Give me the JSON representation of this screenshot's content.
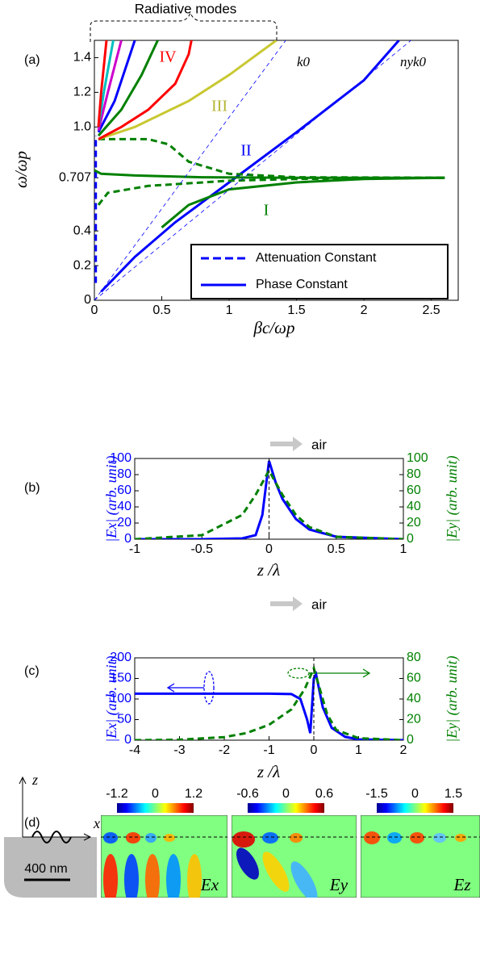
{
  "chart_data": [
    {
      "type": "line",
      "label": "(a)",
      "xlabel": "βc/ωp",
      "ylabel": "ω/ωp",
      "xlim": [
        0,
        2.7
      ],
      "ylim": [
        0,
        1.5
      ],
      "xticks": [
        0,
        0.5,
        1,
        1.5,
        2,
        2.5
      ],
      "yticks": [
        0,
        0.2,
        0.4,
        0.707,
        {
          "value": 1.0,
          "label": "1.0"
        },
        {
          "value": 1.2,
          "label": "1.2"
        },
        {
          "value": 1.4,
          "label": "1.4"
        }
      ],
      "legend_position": "lower right",
      "legend": [
        {
          "label": "Attenuation Constant",
          "color": "#0000ff",
          "dashed": true
        },
        {
          "label": "Phase Constant",
          "color": "#0000ff",
          "dashed": false
        }
      ],
      "annotations": [
        "Radiative modes",
        "IV",
        "III",
        "II",
        "I",
        "k0",
        "nyk0"
      ],
      "series": [
        {
          "color": "#0000ff",
          "dashed": true,
          "x": [
            0.01,
            0.01
          ],
          "values": [
            0.1,
            0.95
          ]
        },
        {
          "color": "#0000ff",
          "dashed": false,
          "x": [
            0.05,
            0.3,
            0.6,
            1.0,
            1.5,
            2.0,
            2.26
          ],
          "values": [
            0.05,
            0.25,
            0.45,
            0.68,
            0.97,
            1.27,
            1.5
          ]
        },
        {
          "color": "#008000",
          "dashed": false,
          "x": [
            0,
            0.05,
            0.3,
            0.8,
            1.5,
            2.6
          ],
          "values": [
            0.75,
            0.73,
            0.72,
            0.71,
            0.707,
            0.707
          ]
        },
        {
          "color": "#008000",
          "dashed": false,
          "x": [
            0.5,
            0.7,
            1.0,
            1.5,
            2.0,
            2.6
          ],
          "values": [
            0.42,
            0.55,
            0.64,
            0.68,
            0.7,
            0.707
          ]
        },
        {
          "color": "#008000",
          "dashed": true,
          "x": [
            0.03,
            0.4,
            0.55,
            0.7,
            1.0,
            1.5,
            2.6
          ],
          "values": [
            0.93,
            0.93,
            0.9,
            0.8,
            0.73,
            0.71,
            0.707
          ]
        },
        {
          "color": "#008000",
          "dashed": true,
          "x": [
            0.03,
            0.1,
            0.4,
            1.0,
            1.5,
            2.6
          ],
          "values": [
            0.55,
            0.62,
            0.66,
            0.69,
            0.7,
            0.707
          ]
        },
        {
          "color": "#c8c832",
          "dashed": false,
          "x": [
            0.03,
            0.3,
            0.7,
            1.0,
            1.35
          ],
          "values": [
            0.93,
            1.0,
            1.15,
            1.3,
            1.5
          ]
        },
        {
          "color": "#ff0000",
          "dashed": false,
          "x": [
            0.03,
            0.2,
            0.4,
            0.6,
            0.7,
            0.72
          ],
          "values": [
            0.93,
            1.0,
            1.1,
            1.25,
            1.42,
            1.5
          ]
        },
        {
          "color": "#008000",
          "dashed": false,
          "x": [
            0.03,
            0.2,
            0.35,
            0.47
          ],
          "values": [
            0.95,
            1.1,
            1.3,
            1.5
          ]
        },
        {
          "color": "#0000ff",
          "dashed": false,
          "x": [
            0.03,
            0.15,
            0.3
          ],
          "values": [
            0.97,
            1.15,
            1.5
          ]
        },
        {
          "color": "#cc00cc",
          "dashed": false,
          "x": [
            0.03,
            0.1,
            0.2
          ],
          "values": [
            0.98,
            1.2,
            1.5
          ]
        },
        {
          "color": "#00bfbf",
          "dashed": false,
          "x": [
            0.03,
            0.07,
            0.14
          ],
          "values": [
            1.0,
            1.2,
            1.5
          ]
        },
        {
          "color": "#ff0000",
          "dashed": false,
          "x": [
            0.03,
            0.05,
            0.09
          ],
          "values": [
            1.0,
            1.2,
            1.5
          ]
        },
        {
          "color": "#0000ff",
          "dashed": true,
          "thin": true,
          "x": [
            0,
            1.42
          ],
          "values": [
            0,
            1.5
          ]
        },
        {
          "color": "#0000ff",
          "dashed": true,
          "thin": true,
          "x": [
            0,
            2.35
          ],
          "values": [
            0,
            1.5
          ]
        }
      ]
    },
    {
      "type": "line",
      "label": "(b)",
      "xlabel": "z /λ",
      "ylabel": "|Ex| (arb. unit)",
      "y2label": "|Ey| (arb. unit)",
      "annotations": [
        "air"
      ],
      "xlim": [
        -1,
        1
      ],
      "ylim": [
        0,
        100
      ],
      "y2lim": [
        0,
        100
      ],
      "xticks": [
        -1,
        -0.5,
        0,
        0.5,
        1
      ],
      "yticks": [
        0,
        20,
        40,
        60,
        80,
        100
      ],
      "y2ticks": [
        0,
        20,
        40,
        60,
        80,
        100
      ],
      "series": [
        {
          "color": "#0000ff",
          "dashed": false,
          "x": [
            -1,
            -0.5,
            -0.2,
            -0.1,
            -0.05,
            0,
            0.05,
            0.1,
            0.2,
            0.3,
            0.5,
            1
          ],
          "values": [
            0,
            0,
            1,
            5,
            30,
            97,
            70,
            50,
            25,
            12,
            3,
            0
          ]
        },
        {
          "color": "#008000",
          "dashed": true,
          "axis": "y2",
          "x": [
            -1,
            -0.5,
            -0.2,
            -0.1,
            -0.05,
            0,
            0.05,
            0.1,
            0.2,
            0.3,
            0.5,
            1
          ],
          "values": [
            0,
            5,
            30,
            55,
            70,
            85,
            70,
            55,
            30,
            15,
            3,
            0
          ]
        }
      ]
    },
    {
      "type": "line",
      "label": "(c)",
      "xlabel": "z /λ",
      "ylabel": "|Ex| (arb. unit)",
      "y2label": "|Ey| (arb. unit)",
      "annotations": [
        "air"
      ],
      "xlim": [
        -4,
        2
      ],
      "ylim": [
        0,
        200
      ],
      "y2lim": [
        0,
        80
      ],
      "xticks": [
        -4,
        -3,
        -2,
        -1,
        0,
        1,
        2
      ],
      "yticks": [
        0,
        50,
        100,
        150,
        200
      ],
      "y2ticks": [
        0,
        20,
        40,
        60,
        80
      ],
      "series": [
        {
          "color": "#0000ff",
          "dashed": false,
          "x": [
            -4,
            -1,
            -0.5,
            -0.3,
            -0.15,
            -0.08,
            0,
            0.05,
            0.2,
            0.4,
            0.7,
            1,
            2
          ],
          "values": [
            113,
            113,
            112,
            100,
            50,
            17,
            150,
            160,
            80,
            30,
            8,
            2,
            0
          ]
        },
        {
          "color": "#008000",
          "dashed": true,
          "axis": "y2",
          "x": [
            -4,
            -3,
            -2,
            -1.5,
            -1,
            -0.5,
            -0.2,
            0,
            0.1,
            0.3,
            0.5,
            1,
            2
          ],
          "values": [
            0,
            0.5,
            3,
            7,
            15,
            30,
            50,
            70,
            55,
            25,
            10,
            2,
            0
          ]
        }
      ]
    },
    {
      "type": "colormap",
      "label": "(d)",
      "annotations": [
        "z",
        "x",
        "400 nm"
      ],
      "panels": [
        {
          "label": "Ex",
          "cticks": [
            -1.2,
            0,
            1.2
          ]
        },
        {
          "label": "Ey",
          "cticks": [
            -0.6,
            0,
            0.6
          ]
        },
        {
          "label": "Ez",
          "cticks": [
            -1.5,
            0,
            1.5
          ]
        }
      ]
    }
  ]
}
